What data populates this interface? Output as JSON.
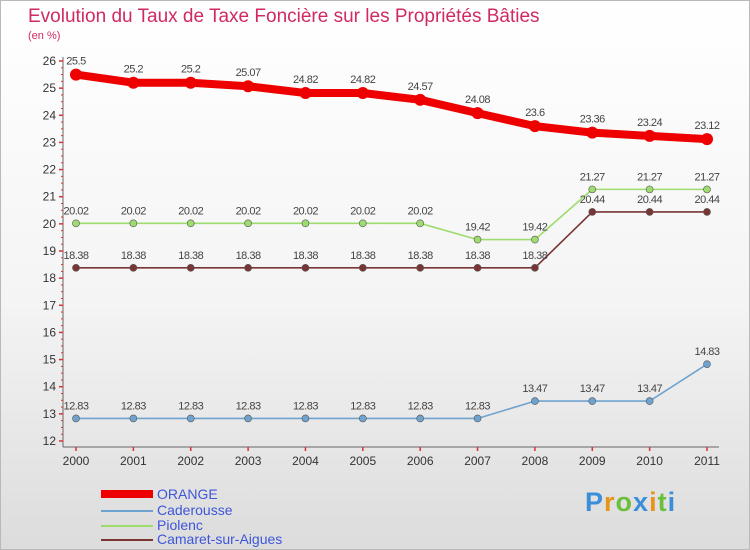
{
  "title": "Evolution du Taux de Taxe Foncière sur les Propriétés Bâties",
  "unit_label": "(en %)",
  "brand": {
    "text": "Proxiti",
    "letters": [
      {
        "ch": "P",
        "color": "#3a8fd8"
      },
      {
        "ch": "r",
        "color": "#e8941a"
      },
      {
        "ch": "o",
        "color": "#6cbf3a"
      },
      {
        "ch": "x",
        "color": "#3a8fd8"
      },
      {
        "ch": "i",
        "color": "#e8941a"
      },
      {
        "ch": "t",
        "color": "#6cbf3a"
      },
      {
        "ch": "i",
        "color": "#3a8fd8"
      }
    ]
  },
  "chart_data": {
    "type": "line",
    "title": "Evolution du Taux de Taxe Foncière sur les Propriétés Bâties",
    "ylabel": "(en %)",
    "xlabel": "",
    "categories": [
      "2000",
      "2001",
      "2002",
      "2003",
      "2004",
      "2005",
      "2006",
      "2007",
      "2008",
      "2009",
      "2010",
      "2011"
    ],
    "ylim": [
      12,
      26
    ],
    "yticks": [
      "12",
      "13",
      "14",
      "15",
      "16",
      "17",
      "18",
      "19",
      "20",
      "21",
      "22",
      "23",
      "24",
      "25",
      "26"
    ],
    "grid": false,
    "series": [
      {
        "name": "ORANGE",
        "color": "#ee0000",
        "width": 8,
        "marker": 6,
        "values": [
          25.5,
          25.2,
          25.2,
          25.07,
          24.82,
          24.82,
          24.57,
          24.08,
          23.6,
          23.36,
          23.24,
          23.12
        ],
        "labels": [
          "25.5",
          "25.2",
          "25.2",
          "25.07",
          "24.82",
          "24.82",
          "24.57",
          "24.08",
          "23.6",
          "23.36",
          "23.24",
          "23.12"
        ]
      },
      {
        "name": "Caderousse",
        "color": "#6fa3cf",
        "width": 1.6,
        "marker": 3.5,
        "values": [
          12.83,
          12.83,
          12.83,
          12.83,
          12.83,
          12.83,
          12.83,
          12.83,
          13.47,
          13.47,
          13.47,
          14.83
        ],
        "labels": [
          "12.83",
          "12.83",
          "12.83",
          "12.83",
          "12.83",
          "12.83",
          "12.83",
          "12.83",
          "13.47",
          "13.47",
          "13.47",
          "14.83"
        ]
      },
      {
        "name": "Piolenc",
        "color": "#9fdc6f",
        "width": 1.6,
        "marker": 3.5,
        "values": [
          20.02,
          20.02,
          20.02,
          20.02,
          20.02,
          20.02,
          20.02,
          19.42,
          19.42,
          21.27,
          21.27,
          21.27
        ],
        "labels": [
          "20.02",
          "20.02",
          "20.02",
          "20.02",
          "20.02",
          "20.02",
          "20.02",
          "19.42",
          "19.42",
          "21.27",
          "21.27",
          "21.27"
        ]
      },
      {
        "name": "Camaret-sur-Aigues",
        "color": "#7a3434",
        "width": 1.6,
        "marker": 3.5,
        "values": [
          18.38,
          18.38,
          18.38,
          18.38,
          18.38,
          18.38,
          18.38,
          18.38,
          18.38,
          20.44,
          20.44,
          20.44
        ],
        "labels": [
          "18.38",
          "18.38",
          "18.38",
          "18.38",
          "18.38",
          "18.38",
          "18.38",
          "18.38",
          "18.38",
          "20.44",
          "20.44",
          "20.44"
        ]
      }
    ],
    "legend": "bottom-left"
  }
}
